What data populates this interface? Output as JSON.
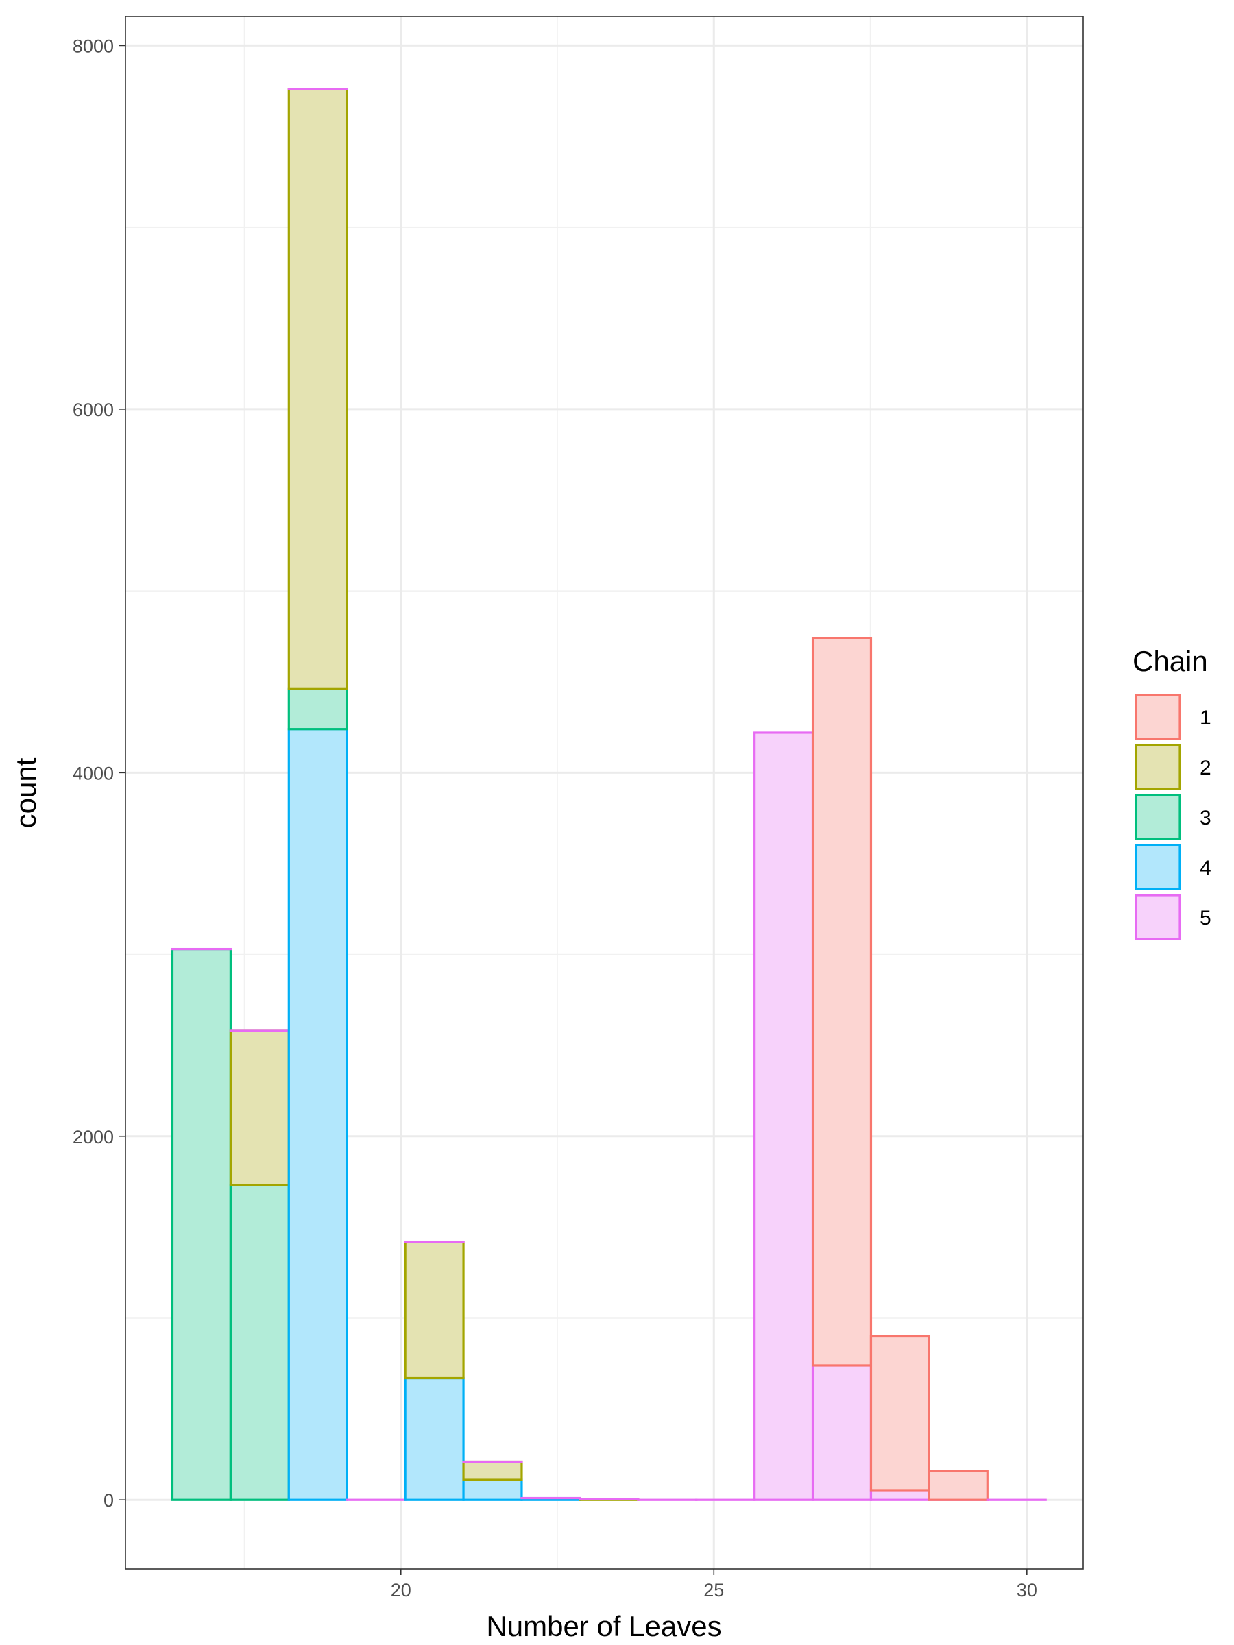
{
  "chart_data": {
    "type": "bar",
    "subtype": "histogram-stacked",
    "xlabel": "Number of Leaves",
    "ylabel": "count",
    "xlim": [
      15.6,
      30.9
    ],
    "ylim": [
      -380,
      8160
    ],
    "x_ticks": [
      20,
      25,
      30
    ],
    "y_ticks": [
      0,
      2000,
      4000,
      6000,
      8000
    ],
    "grid": true,
    "legend_position": "right",
    "bins": [
      {
        "x0": 16.35,
        "x1": 17.28,
        "stack": [
          {
            "series": "3",
            "value": 3030
          },
          {
            "series": "5",
            "value": 0
          }
        ]
      },
      {
        "x0": 17.28,
        "x1": 18.21,
        "stack": [
          {
            "series": "3",
            "value": 1730
          },
          {
            "series": "2",
            "value": 850
          },
          {
            "series": "5",
            "value": 0
          }
        ]
      },
      {
        "x0": 18.21,
        "x1": 19.14,
        "stack": [
          {
            "series": "4",
            "value": 4240
          },
          {
            "series": "3",
            "value": 220
          },
          {
            "series": "2",
            "value": 3300
          },
          {
            "series": "5",
            "value": 0
          }
        ]
      },
      {
        "x0": 19.14,
        "x1": 20.07,
        "stack": [
          {
            "series": "5",
            "value": 0
          }
        ]
      },
      {
        "x0": 20.07,
        "x1": 21.0,
        "stack": [
          {
            "series": "4",
            "value": 670
          },
          {
            "series": "2",
            "value": 750
          },
          {
            "series": "5",
            "value": 0
          }
        ]
      },
      {
        "x0": 21.0,
        "x1": 21.93,
        "stack": [
          {
            "series": "4",
            "value": 110
          },
          {
            "series": "2",
            "value": 100
          },
          {
            "series": "5",
            "value": 0
          }
        ]
      },
      {
        "x0": 21.93,
        "x1": 22.86,
        "stack": [
          {
            "series": "4",
            "value": 10
          },
          {
            "series": "5",
            "value": 0
          }
        ]
      },
      {
        "x0": 22.86,
        "x1": 23.79,
        "stack": [
          {
            "series": "2",
            "value": 5
          },
          {
            "series": "5",
            "value": 0
          }
        ]
      },
      {
        "x0": 23.79,
        "x1": 24.72,
        "stack": [
          {
            "series": "5",
            "value": 0
          }
        ]
      },
      {
        "x0": 24.72,
        "x1": 25.65,
        "stack": [
          {
            "series": "5",
            "value": 0
          }
        ]
      },
      {
        "x0": 25.65,
        "x1": 26.58,
        "stack": [
          {
            "series": "5",
            "value": 4220
          }
        ]
      },
      {
        "x0": 26.58,
        "x1": 27.51,
        "stack": [
          {
            "series": "5",
            "value": 740
          },
          {
            "series": "1",
            "value": 4000
          }
        ]
      },
      {
        "x0": 27.51,
        "x1": 28.44,
        "stack": [
          {
            "series": "5",
            "value": 50
          },
          {
            "series": "1",
            "value": 850
          }
        ]
      },
      {
        "x0": 28.44,
        "x1": 29.37,
        "stack": [
          {
            "series": "5",
            "value": 0
          },
          {
            "series": "1",
            "value": 160
          }
        ]
      },
      {
        "x0": 29.37,
        "x1": 30.3,
        "stack": [
          {
            "series": "5",
            "value": 0
          }
        ]
      }
    ],
    "series": [
      {
        "name": "1",
        "stroke": "#F8766D",
        "fill": "#FCD5D2"
      },
      {
        "name": "2",
        "stroke": "#A3A500",
        "fill": "#E4E3B2"
      },
      {
        "name": "3",
        "stroke": "#00BF7D",
        "fill": "#B2ECD8"
      },
      {
        "name": "4",
        "stroke": "#00B0F6",
        "fill": "#B2E7FC"
      },
      {
        "name": "5",
        "stroke": "#E76BF3",
        "fill": "#F7D2FB"
      }
    ],
    "legend": {
      "title": "Chain",
      "entries": [
        "1",
        "2",
        "3",
        "4",
        "5"
      ]
    }
  }
}
